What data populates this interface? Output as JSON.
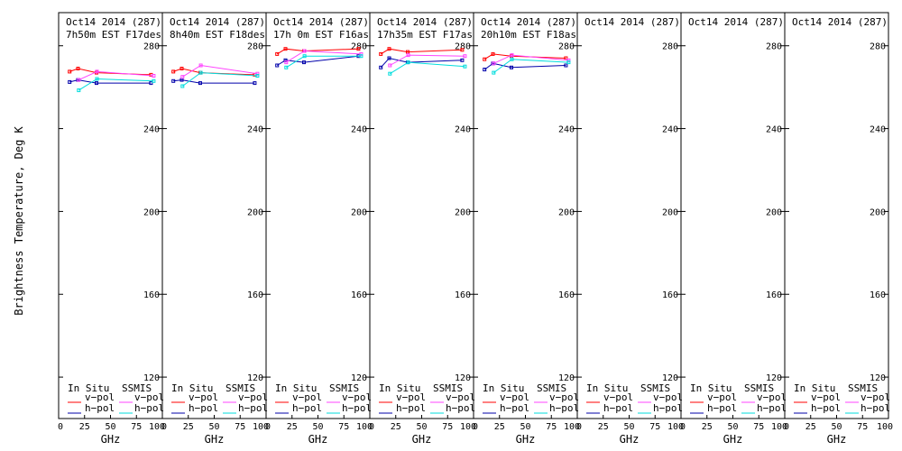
{
  "ylabel": "Brightness Temperature, Deg K",
  "xlabel": "GHz",
  "ylim": [
    100,
    296
  ],
  "xlim": [
    0,
    100
  ],
  "y_ticks": [
    120,
    160,
    200,
    240,
    280
  ],
  "x_tick_labels": [
    "0",
    "25",
    "50",
    "75",
    "100"
  ],
  "legend": {
    "in_situ": "In Situ",
    "ssmis": "SSMIS",
    "v_pol": "v−pol",
    "h_pol": "h−pol"
  },
  "colors": {
    "insitu_v": "#ff0000",
    "insitu_h": "#0000aa",
    "ssmis_v": "#ff44ff",
    "ssmis_h": "#00dddd"
  },
  "chart_data": {
    "type": "line",
    "panels": [
      {
        "title1": "Oct14 2014 (287)",
        "title2": "7h50m EST F17des",
        "insitu_v": {
          "x": [
            10.65,
            18.7,
            36.5,
            89
          ],
          "y": [
            267.5,
            269,
            267,
            266
          ]
        },
        "insitu_h": {
          "x": [
            10.65,
            18.7,
            36.5,
            89
          ],
          "y": [
            262.5,
            263.5,
            262,
            262
          ]
        },
        "ssmis_v": {
          "x": [
            19.35,
            37,
            91.65
          ],
          "y": [
            263.5,
            267.5,
            265.5
          ]
        },
        "ssmis_h": {
          "x": [
            19.35,
            37,
            91.65
          ],
          "y": [
            258.5,
            264,
            263
          ]
        }
      },
      {
        "title1": "Oct14 2014 (287)",
        "title2": "8h40m EST F18des",
        "insitu_v": {
          "x": [
            10.65,
            18.7,
            36.5,
            89
          ],
          "y": [
            267.5,
            269,
            267,
            266
          ]
        },
        "insitu_h": {
          "x": [
            10.65,
            18.7,
            36.5,
            89
          ],
          "y": [
            263,
            263.5,
            262,
            262
          ]
        },
        "ssmis_v": {
          "x": [
            19.35,
            37,
            91.65
          ],
          "y": [
            265,
            270.5,
            266.5
          ]
        },
        "ssmis_h": {
          "x": [
            19.35,
            37,
            91.65
          ],
          "y": [
            260.5,
            267,
            265.5
          ]
        }
      },
      {
        "title1": "Oct14 2014 (287)",
        "title2": "17h 0m EST F16asc",
        "insitu_v": {
          "x": [
            10.65,
            18.7,
            36.5,
            89
          ],
          "y": [
            276,
            278.5,
            277.5,
            278.5
          ]
        },
        "insitu_h": {
          "x": [
            10.65,
            18.7,
            36.5,
            89
          ],
          "y": [
            270.5,
            273,
            272,
            275
          ]
        },
        "ssmis_v": {
          "x": [
            19.35,
            37,
            91.65
          ],
          "y": [
            272,
            277.5,
            276
          ]
        },
        "ssmis_h": {
          "x": [
            19.35,
            37,
            91.65
          ],
          "y": [
            269.5,
            275,
            275
          ]
        }
      },
      {
        "title1": "Oct14 2014 (287)",
        "title2": "17h35m EST F17asc",
        "insitu_v": {
          "x": [
            10.65,
            18.7,
            36.5,
            89
          ],
          "y": [
            276,
            278.5,
            277,
            278
          ]
        },
        "insitu_h": {
          "x": [
            10.65,
            18.7,
            36.5,
            89
          ],
          "y": [
            269.5,
            274,
            272,
            273
          ]
        },
        "ssmis_v": {
          "x": [
            19.35,
            37,
            91.65
          ],
          "y": [
            270.5,
            275.5,
            275
          ]
        },
        "ssmis_h": {
          "x": [
            19.35,
            37,
            91.65
          ],
          "y": [
            266.5,
            272,
            270
          ]
        }
      },
      {
        "title1": "Oct14 2014 (287)",
        "title2": "20h10m EST F18asc",
        "insitu_v": {
          "x": [
            10.65,
            18.7,
            36.5,
            89
          ],
          "y": [
            273.5,
            276,
            275,
            274
          ]
        },
        "insitu_h": {
          "x": [
            10.65,
            18.7,
            36.5,
            89
          ],
          "y": [
            268.5,
            271.5,
            269.5,
            270.5
          ]
        },
        "ssmis_v": {
          "x": [
            19.35,
            37,
            91.65
          ],
          "y": [
            271.5,
            275.5,
            273
          ]
        },
        "ssmis_h": {
          "x": [
            19.35,
            37,
            91.65
          ],
          "y": [
            267,
            273.5,
            272
          ]
        }
      },
      {
        "title1": "Oct14 2014 (287)",
        "title2": ""
      },
      {
        "title1": "Oct14 2014 (287)",
        "title2": ""
      },
      {
        "title1": "Oct14 2014 (287)",
        "title2": ""
      }
    ]
  }
}
